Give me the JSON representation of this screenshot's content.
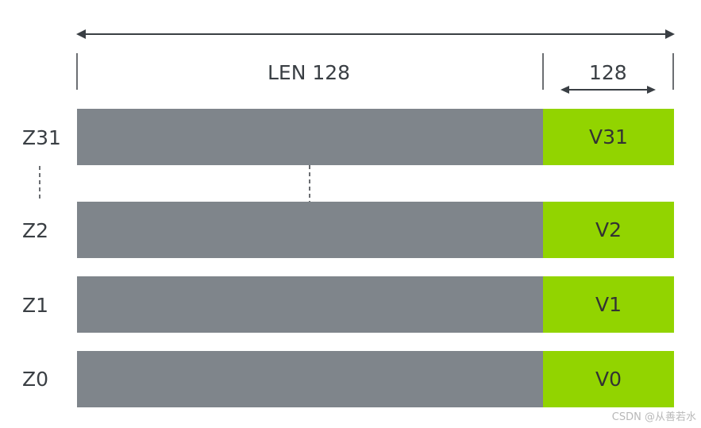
{
  "header": {
    "len_label": "LEN 128",
    "v_width_label": "128"
  },
  "registers": [
    {
      "z": "Z31",
      "v": "V31"
    },
    {
      "z": "Z2",
      "v": "V2"
    },
    {
      "z": "Z1",
      "v": "V1"
    },
    {
      "z": "Z0",
      "v": "V0"
    }
  ],
  "colors": {
    "z_part": "#7f858b",
    "v_part": "#92d400",
    "lines": "#3a3f44"
  },
  "watermark": "CSDN @从善若水"
}
